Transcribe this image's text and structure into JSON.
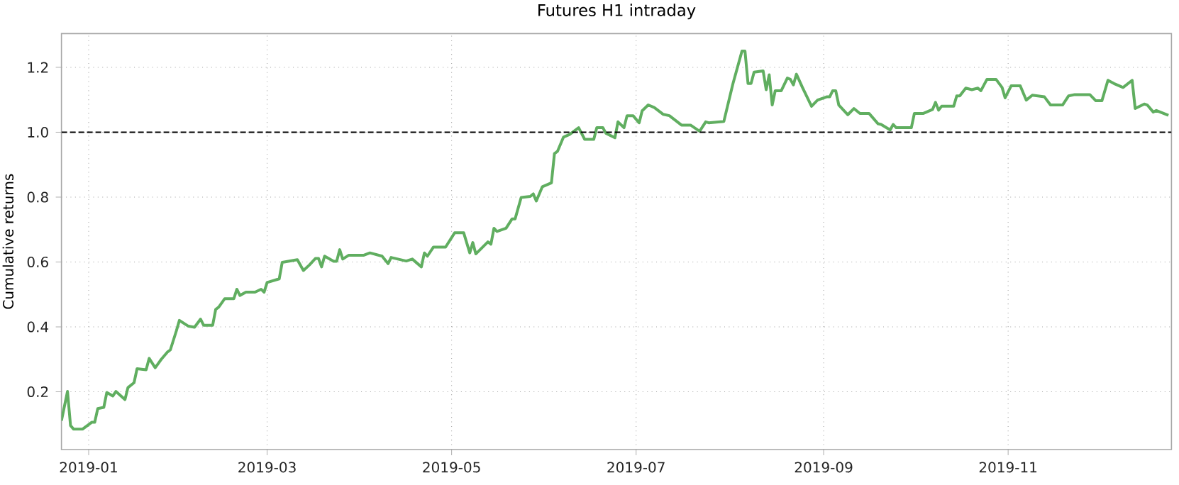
{
  "chart_data": {
    "type": "line",
    "title": "Futures H1 intraday",
    "ylabel": "Cumulative returns",
    "xlim": [
      "2018-12-23",
      "2019-12-25"
    ],
    "ylim": [
      0.022,
      1.304
    ],
    "xticks": [
      {
        "value": "2019-01-01",
        "label": "2019-01"
      },
      {
        "value": "2019-03-01",
        "label": "2019-03"
      },
      {
        "value": "2019-05-01",
        "label": "2019-05"
      },
      {
        "value": "2019-07-01",
        "label": "2019-07"
      },
      {
        "value": "2019-09-01",
        "label": "2019-09"
      },
      {
        "value": "2019-11-01",
        "label": "2019-11"
      }
    ],
    "yticks": [
      0.2,
      0.4,
      0.6,
      0.8,
      {
        "value": 1.0,
        "label": "1.0"
      },
      1.2
    ],
    "grid": true,
    "line_style": "solid",
    "marker": "none",
    "ref_lines": [
      {
        "axis": "y",
        "value": 1.0,
        "color": "#000000",
        "line_style": "dashed"
      }
    ],
    "x": [
      "2018-12-23",
      "2018-12-25",
      "2018-12-26",
      "2018-12-27",
      "2018-12-30",
      "2019-01-02",
      "2019-01-03",
      "2019-01-04",
      "2019-01-06",
      "2019-01-07",
      "2019-01-09",
      "2019-01-10",
      "2019-01-13",
      "2019-01-14",
      "2019-01-16",
      "2019-01-17",
      "2019-01-20",
      "2019-01-21",
      "2019-01-23",
      "2019-01-25",
      "2019-01-27",
      "2019-01-28",
      "2019-01-30",
      "2019-01-31",
      "2019-02-03",
      "2019-02-05",
      "2019-02-07",
      "2019-02-08",
      "2019-02-11",
      "2019-02-12",
      "2019-02-13",
      "2019-02-15",
      "2019-02-18",
      "2019-02-19",
      "2019-02-20",
      "2019-02-22",
      "2019-02-25",
      "2019-02-27",
      "2019-02-28",
      "2019-03-01",
      "2019-03-05",
      "2019-03-06",
      "2019-03-11",
      "2019-03-13",
      "2019-03-15",
      "2019-03-17",
      "2019-03-18",
      "2019-03-19",
      "2019-03-20",
      "2019-03-23",
      "2019-03-24",
      "2019-03-25",
      "2019-03-26",
      "2019-03-28",
      "2019-04-02",
      "2019-04-04",
      "2019-04-08",
      "2019-04-10",
      "2019-04-11",
      "2019-04-16",
      "2019-04-18",
      "2019-04-21",
      "2019-04-22",
      "2019-04-23",
      "2019-04-25",
      "2019-04-29",
      "2019-05-02",
      "2019-05-05",
      "2019-05-07",
      "2019-05-08",
      "2019-05-09",
      "2019-05-13",
      "2019-05-14",
      "2019-05-15",
      "2019-05-16",
      "2019-05-19",
      "2019-05-21",
      "2019-05-22",
      "2019-05-24",
      "2019-05-27",
      "2019-05-28",
      "2019-05-29",
      "2019-05-31",
      "2019-06-03",
      "2019-06-04",
      "2019-06-05",
      "2019-06-07",
      "2019-06-09",
      "2019-06-12",
      "2019-06-14",
      "2019-06-17",
      "2019-06-18",
      "2019-06-20",
      "2019-06-21",
      "2019-06-24",
      "2019-06-25",
      "2019-06-27",
      "2019-06-28",
      "2019-06-30",
      "2019-07-02",
      "2019-07-03",
      "2019-07-05",
      "2019-07-07",
      "2019-07-10",
      "2019-07-12",
      "2019-07-16",
      "2019-07-19",
      "2019-07-22",
      "2019-07-24",
      "2019-07-25",
      "2019-07-30",
      "2019-08-02",
      "2019-08-05",
      "2019-08-06",
      "2019-08-07",
      "2019-08-08",
      "2019-08-09",
      "2019-08-12",
      "2019-08-13",
      "2019-08-14",
      "2019-08-15",
      "2019-08-16",
      "2019-08-18",
      "2019-08-20",
      "2019-08-21",
      "2019-08-22",
      "2019-08-23",
      "2019-08-25",
      "2019-08-28",
      "2019-08-30",
      "2019-09-02",
      "2019-09-03",
      "2019-09-04",
      "2019-09-05",
      "2019-09-06",
      "2019-09-09",
      "2019-09-11",
      "2019-09-13",
      "2019-09-16",
      "2019-09-19",
      "2019-09-20",
      "2019-09-23",
      "2019-09-24",
      "2019-09-25",
      "2019-09-30",
      "2019-10-01",
      "2019-10-04",
      "2019-10-07",
      "2019-10-08",
      "2019-10-09",
      "2019-10-10",
      "2019-10-14",
      "2019-10-15",
      "2019-10-16",
      "2019-10-18",
      "2019-10-20",
      "2019-10-22",
      "2019-10-23",
      "2019-10-25",
      "2019-10-28",
      "2019-10-30",
      "2019-10-31",
      "2019-11-02",
      "2019-11-05",
      "2019-11-07",
      "2019-11-09",
      "2019-11-13",
      "2019-11-15",
      "2019-11-19",
      "2019-11-21",
      "2019-11-23",
      "2019-11-28",
      "2019-11-30",
      "2019-12-02",
      "2019-12-04",
      "2019-12-06",
      "2019-12-09",
      "2019-12-12",
      "2019-12-13",
      "2019-12-16",
      "2019-12-17",
      "2019-12-19",
      "2019-12-20",
      "2019-12-24"
    ],
    "series": [
      {
        "color": "#60ae60",
        "values": [
          0.111,
          0.201,
          0.096,
          0.085,
          0.085,
          0.106,
          0.106,
          0.148,
          0.152,
          0.198,
          0.187,
          0.201,
          0.176,
          0.213,
          0.228,
          0.271,
          0.268,
          0.303,
          0.274,
          0.3,
          0.322,
          0.329,
          0.388,
          0.42,
          0.402,
          0.399,
          0.424,
          0.405,
          0.405,
          0.454,
          0.461,
          0.487,
          0.487,
          0.516,
          0.497,
          0.507,
          0.507,
          0.516,
          0.507,
          0.537,
          0.548,
          0.599,
          0.607,
          0.574,
          0.591,
          0.611,
          0.611,
          0.585,
          0.618,
          0.602,
          0.602,
          0.638,
          0.609,
          0.621,
          0.621,
          0.628,
          0.618,
          0.595,
          0.614,
          0.603,
          0.609,
          0.585,
          0.628,
          0.618,
          0.646,
          0.646,
          0.69,
          0.69,
          0.628,
          0.66,
          0.625,
          0.662,
          0.655,
          0.704,
          0.694,
          0.704,
          0.733,
          0.733,
          0.799,
          0.802,
          0.81,
          0.788,
          0.832,
          0.844,
          0.934,
          0.941,
          0.985,
          0.993,
          1.014,
          0.978,
          0.978,
          1.014,
          1.014,
          0.997,
          0.983,
          1.032,
          1.014,
          1.051,
          1.051,
          1.029,
          1.066,
          1.084,
          1.076,
          1.055,
          1.051,
          1.022,
          1.022,
          1.003,
          1.032,
          1.029,
          1.033,
          1.149,
          1.25,
          1.25,
          1.15,
          1.15,
          1.185,
          1.189,
          1.131,
          1.177,
          1.084,
          1.128,
          1.128,
          1.167,
          1.163,
          1.146,
          1.179,
          1.138,
          1.08,
          1.099,
          1.109,
          1.109,
          1.128,
          1.128,
          1.084,
          1.054,
          1.073,
          1.058,
          1.058,
          1.026,
          1.024,
          1.007,
          1.024,
          1.014,
          1.014,
          1.058,
          1.058,
          1.07,
          1.092,
          1.068,
          1.08,
          1.08,
          1.112,
          1.112,
          1.136,
          1.131,
          1.136,
          1.128,
          1.163,
          1.163,
          1.138,
          1.106,
          1.143,
          1.143,
          1.099,
          1.114,
          1.109,
          1.084,
          1.084,
          1.112,
          1.116,
          1.116,
          1.097,
          1.097,
          1.16,
          1.15,
          1.138,
          1.16,
          1.073,
          1.087,
          1.084,
          1.062,
          1.067,
          1.052
        ]
      }
    ]
  }
}
